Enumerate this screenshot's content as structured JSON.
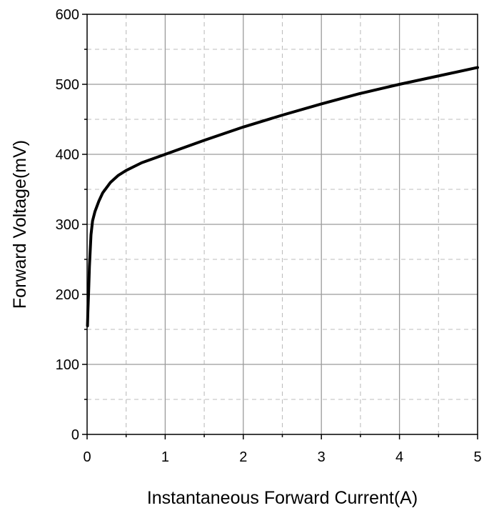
{
  "chart_data": {
    "type": "line",
    "xlabel": "Instantaneous Forward Current(A)",
    "ylabel": "Forward Voltage(mV)",
    "xlim": [
      0,
      5
    ],
    "ylim": [
      0,
      600
    ],
    "x_ticks": [
      "0",
      "1",
      "2",
      "3",
      "4",
      "5"
    ],
    "y_ticks": [
      "0",
      "100",
      "200",
      "300",
      "400",
      "500",
      "600"
    ],
    "grid": "major solid, minor dashed",
    "series": [
      {
        "color": "#000000",
        "x": [
          0.005,
          0.01,
          0.02,
          0.03,
          0.05,
          0.07,
          0.1,
          0.15,
          0.2,
          0.3,
          0.4,
          0.5,
          0.7,
          1.0,
          1.5,
          2.0,
          2.5,
          3.0,
          3.5,
          4.0,
          4.5,
          5.0
        ],
        "y": [
          155,
          175,
          205,
          240,
          285,
          305,
          318,
          333,
          345,
          360,
          370,
          377,
          388,
          400,
          420,
          439,
          456,
          472,
          487,
          500,
          512,
          524
        ]
      }
    ]
  }
}
